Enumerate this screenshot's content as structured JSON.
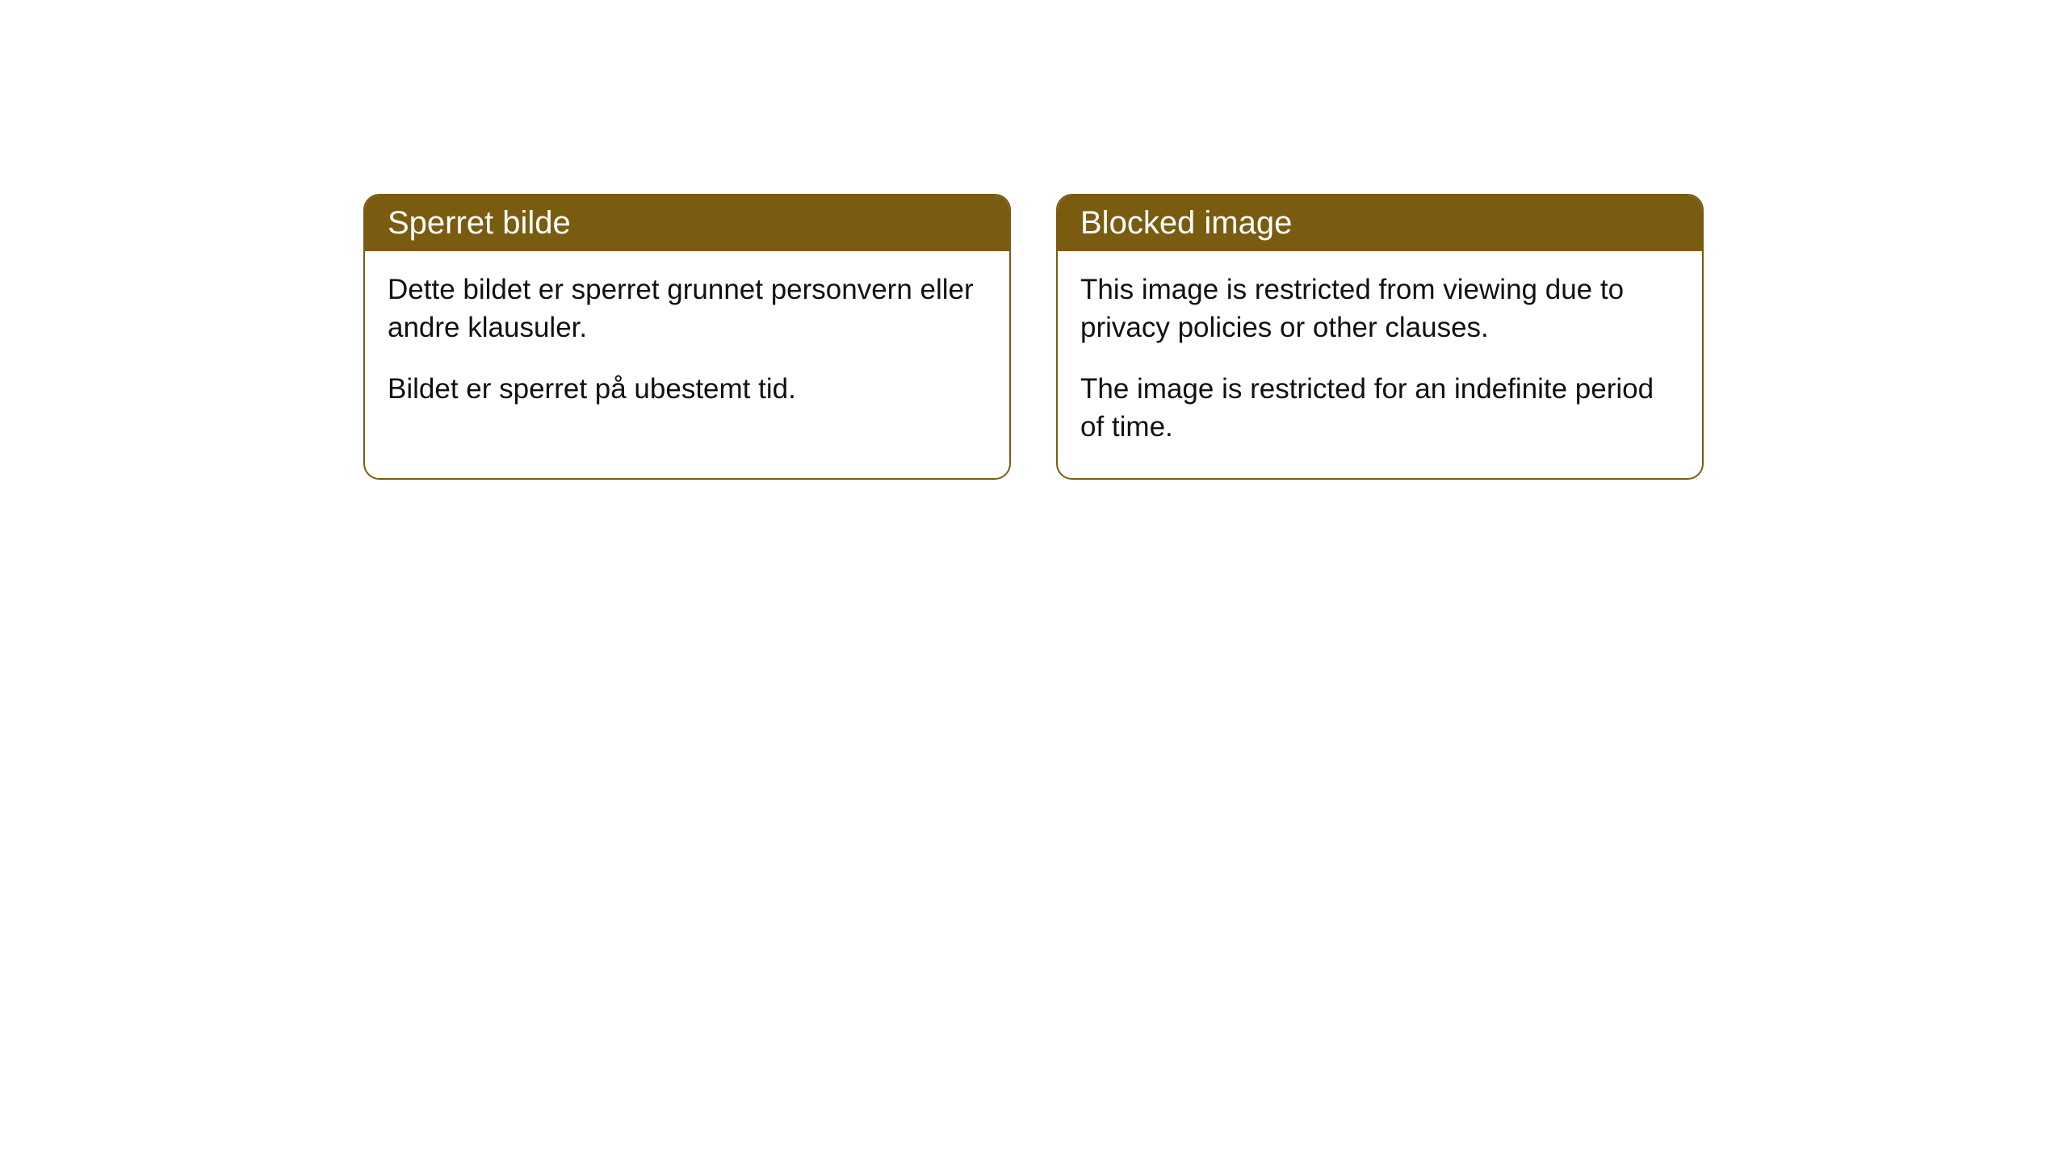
{
  "cards": [
    {
      "title": "Sperret bilde",
      "paragraph1": "Dette bildet er sperret grunnet personvern eller andre klausuler.",
      "paragraph2": "Bildet er sperret på ubestemt tid."
    },
    {
      "title": "Blocked image",
      "paragraph1": "This image is restricted from viewing due to privacy policies or other clauses.",
      "paragraph2": "The image is restricted for an indefinite period of time."
    }
  ],
  "styles": {
    "header_bg_color": "#7a5c11",
    "header_text_color": "#ffffff",
    "border_color": "#7a5c11",
    "body_bg_color": "#ffffff",
    "body_text_color": "#111111",
    "header_fontsize": 40,
    "body_fontsize": 35,
    "border_radius": 20,
    "border_width": 2
  }
}
